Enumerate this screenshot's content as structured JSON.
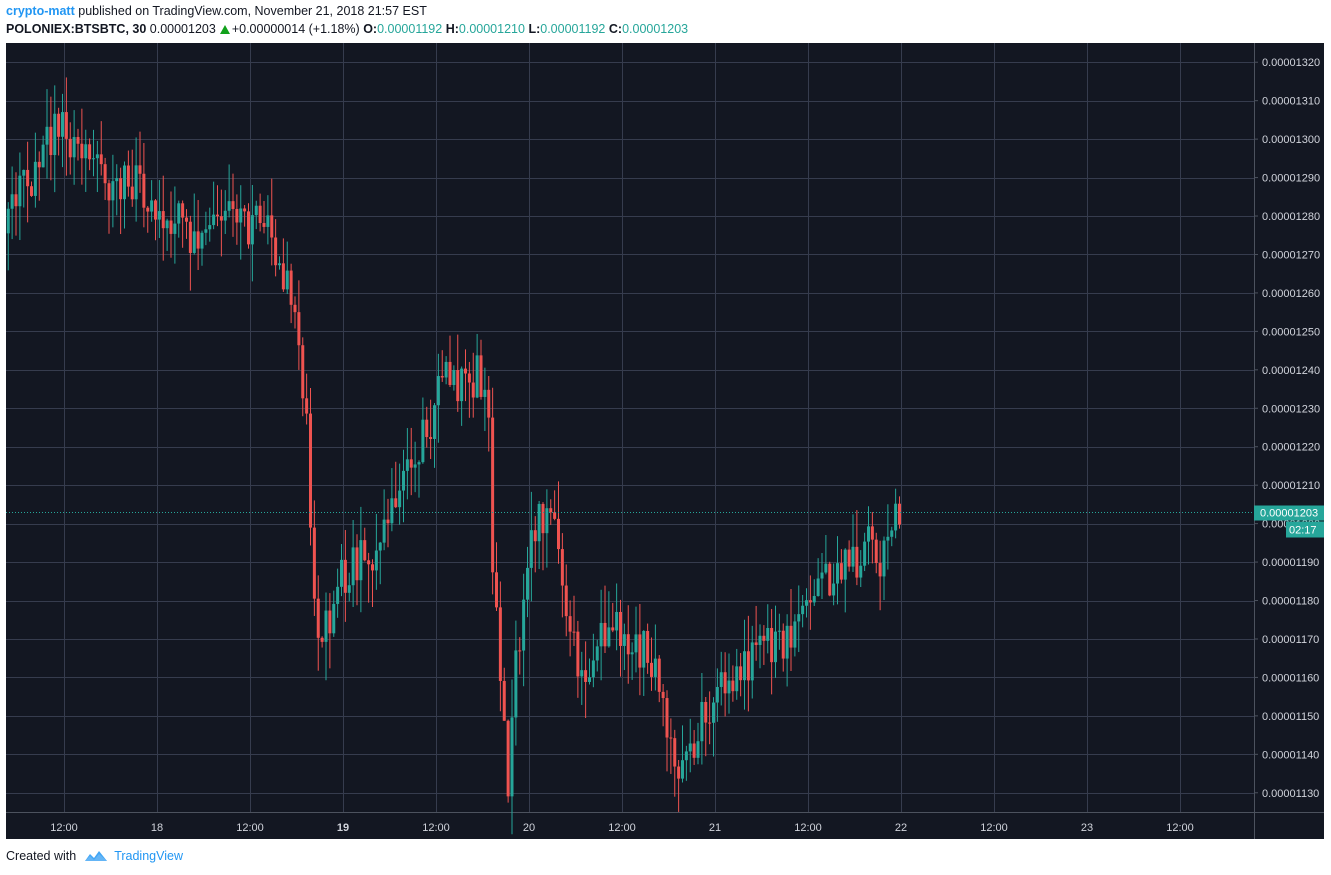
{
  "header": {
    "author": "crypto-matt",
    "published_text": "published on TradingView.com, November 21, 2018 21:57 EST",
    "symbol": "POLONIEX:BTSBTC, 30",
    "last": "0.00001203",
    "change": "+0.00000014 (+1.18%)",
    "open_label": "O:",
    "open": "0.00001192",
    "high_label": "H:",
    "high": "0.00001210",
    "low_label": "L:",
    "low": "0.00001192",
    "close_label": "C:",
    "close": "0.00001203"
  },
  "footer": {
    "created_with": "Created with",
    "brand": "TradingView"
  },
  "colors": {
    "background": "#131722",
    "grid": "#363c4e",
    "up": "#26a69a",
    "down": "#ef5350",
    "axis_text": "#d1d4dc",
    "price_tag": "#26a69a",
    "brand": "#2196f3"
  },
  "chart_data": {
    "type": "candlestick",
    "interval": "30",
    "x_tick_labels": [
      "12:00",
      "18",
      "12:00",
      "19",
      "12:00",
      "20",
      "12:00",
      "21",
      "12:00",
      "22",
      "12:00",
      "23",
      "12:00"
    ],
    "x_tick_bold": [
      false,
      false,
      false,
      true,
      false,
      false,
      false,
      false,
      false,
      false,
      false,
      false,
      false
    ],
    "y_tick_labels": [
      "0.00001320",
      "0.00001310",
      "0.00001300",
      "0.00001290",
      "0.00001280",
      "0.00001270",
      "0.00001260",
      "0.00001250",
      "0.00001240",
      "0.00001230",
      "0.00001220",
      "0.00001210",
      "0.00001200",
      "0.00001190",
      "0.00001180",
      "0.00001170",
      "0.00001160",
      "0.00001150",
      "0.00001140",
      "0.00001130"
    ],
    "ylim": [
      1.125e-05,
      1.325e-05
    ],
    "x_range_hours": [
      0,
      147
    ],
    "x_tick_hours": [
      12,
      24,
      36,
      48,
      60,
      72,
      84,
      96,
      108,
      120,
      132,
      144,
      156
    ],
    "current_price": "0.00001203",
    "current_price_value": 1.203e-05,
    "countdown": "02:17",
    "price_path": [
      [
        0,
        1.287
      ],
      [
        3,
        1.297
      ],
      [
        5,
        1.288
      ],
      [
        8,
        1.279
      ],
      [
        10,
        1.276
      ],
      [
        12,
        1.282
      ],
      [
        14,
        1.289
      ],
      [
        16,
        1.296
      ],
      [
        18,
        1.303
      ],
      [
        20,
        1.3
      ],
      [
        22,
        1.294
      ],
      [
        24,
        1.29
      ],
      [
        26,
        1.287
      ],
      [
        28,
        1.288
      ],
      [
        30,
        1.284
      ],
      [
        32,
        1.278
      ],
      [
        34,
        1.278
      ],
      [
        36,
        1.272
      ],
      [
        38,
        1.277
      ],
      [
        40,
        1.28
      ],
      [
        42,
        1.277
      ],
      [
        44,
        1.279
      ],
      [
        46,
        1.27
      ],
      [
        48,
        1.26
      ],
      [
        49,
        1.242
      ],
      [
        50,
        1.223
      ],
      [
        51,
        1.175
      ],
      [
        52,
        1.169
      ],
      [
        54,
        1.184
      ],
      [
        56,
        1.189
      ],
      [
        58,
        1.192
      ],
      [
        60,
        1.196
      ],
      [
        62,
        1.206
      ],
      [
        64,
        1.218
      ],
      [
        66,
        1.228
      ],
      [
        68,
        1.238
      ],
      [
        70,
        1.236
      ],
      [
        72,
        1.239
      ],
      [
        73,
        1.235
      ],
      [
        73.5,
        1.225
      ],
      [
        74,
        1.19
      ],
      [
        75,
        1.155
      ],
      [
        76,
        1.134
      ],
      [
        77,
        1.162
      ],
      [
        78,
        1.18
      ],
      [
        79,
        1.199
      ],
      [
        80,
        1.202
      ],
      [
        82,
        1.197
      ],
      [
        84,
        1.17
      ],
      [
        86,
        1.162
      ],
      [
        88,
        1.171
      ],
      [
        90,
        1.174
      ],
      [
        92,
        1.165
      ],
      [
        94,
        1.167
      ],
      [
        96,
        1.156
      ],
      [
        97,
        1.142
      ],
      [
        98,
        1.138
      ],
      [
        100,
        1.144
      ],
      [
        102,
        1.153
      ],
      [
        104,
        1.158
      ],
      [
        106,
        1.163
      ],
      [
        108,
        1.166
      ],
      [
        110,
        1.169
      ],
      [
        112,
        1.168
      ],
      [
        114,
        1.177
      ],
      [
        116,
        1.183
      ],
      [
        118,
        1.188
      ],
      [
        120,
        1.193
      ],
      [
        122,
        1.19
      ],
      [
        123,
        1.198
      ],
      [
        124,
        1.187
      ],
      [
        125,
        1.196
      ],
      [
        126,
        1.203
      ]
    ],
    "price_path_unit": "1e-5 BTC"
  }
}
